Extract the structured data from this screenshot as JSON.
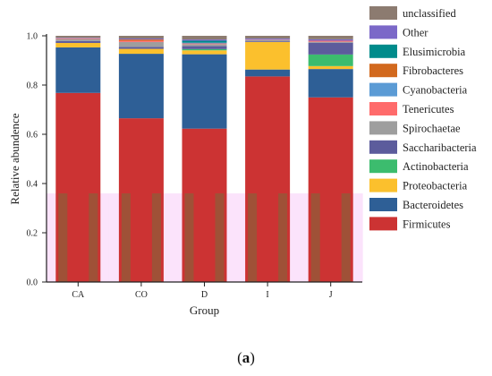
{
  "chart_data": {
    "type": "bar",
    "stacked": true,
    "categories": [
      "CA",
      "CO",
      "D",
      "I",
      "J"
    ],
    "xlabel": "Group",
    "ylabel": "Relative abundence",
    "ylim": [
      0,
      1.0
    ],
    "yticks": [
      "0.0",
      "0.2",
      "0.4",
      "0.6",
      "0.8",
      "1.0"
    ],
    "grid": false,
    "legend_position": "right",
    "series": [
      {
        "name": "Firmicutes",
        "color": "#cc3333",
        "values": [
          0.768,
          0.665,
          0.623,
          0.835,
          0.75
        ]
      },
      {
        "name": "Bacteroidetes",
        "color": "#2e5f96",
        "values": [
          0.185,
          0.262,
          0.302,
          0.028,
          0.115
        ]
      },
      {
        "name": "Proteobacteria",
        "color": "#fbc02d",
        "values": [
          0.018,
          0.02,
          0.016,
          0.112,
          0.012
        ]
      },
      {
        "name": "Actinobacteria",
        "color": "#3cbc6e",
        "values": [
          0.0,
          0.0,
          0.005,
          0.0,
          0.047
        ]
      },
      {
        "name": "Saccharibacteria",
        "color": "#5c5c9c",
        "values": [
          0.008,
          0.008,
          0.012,
          0.003,
          0.048
        ]
      },
      {
        "name": "Spirochaetae",
        "color": "#9e9e9e",
        "values": [
          0.008,
          0.02,
          0.008,
          0.004,
          0.004
        ]
      },
      {
        "name": "Tenericutes",
        "color": "#ff6b6b",
        "values": [
          0.003,
          0.005,
          0.003,
          0.002,
          0.004
        ]
      },
      {
        "name": "Cyanobacteria",
        "color": "#5b9bd5",
        "values": [
          0.0,
          0.0,
          0.003,
          0.002,
          0.0
        ]
      },
      {
        "name": "Fibrobacteres",
        "color": "#d2691e",
        "values": [
          0.0,
          0.005,
          0.0,
          0.0,
          0.0
        ]
      },
      {
        "name": "Elusimicrobia",
        "color": "#008b8b",
        "values": [
          0.0,
          0.0,
          0.008,
          0.0,
          0.0
        ]
      },
      {
        "name": "Other",
        "color": "#7b68c8",
        "values": [
          0.002,
          0.004,
          0.005,
          0.003,
          0.006
        ]
      },
      {
        "name": "unclassified",
        "color": "#8c7b70",
        "values": [
          0.008,
          0.011,
          0.015,
          0.011,
          0.014
        ]
      }
    ],
    "legend_order": [
      "unclassified",
      "Other",
      "Elusimicrobia",
      "Fibrobacteres",
      "Cyanobacteria",
      "Tenericutes",
      "Spirochaetae",
      "Saccharibacteria",
      "Actinobacteria",
      "Proteobacteria",
      "Bacteroidetes",
      "Firmicutes"
    ]
  },
  "panel_label": "(a)",
  "panel_label_letter": "a"
}
